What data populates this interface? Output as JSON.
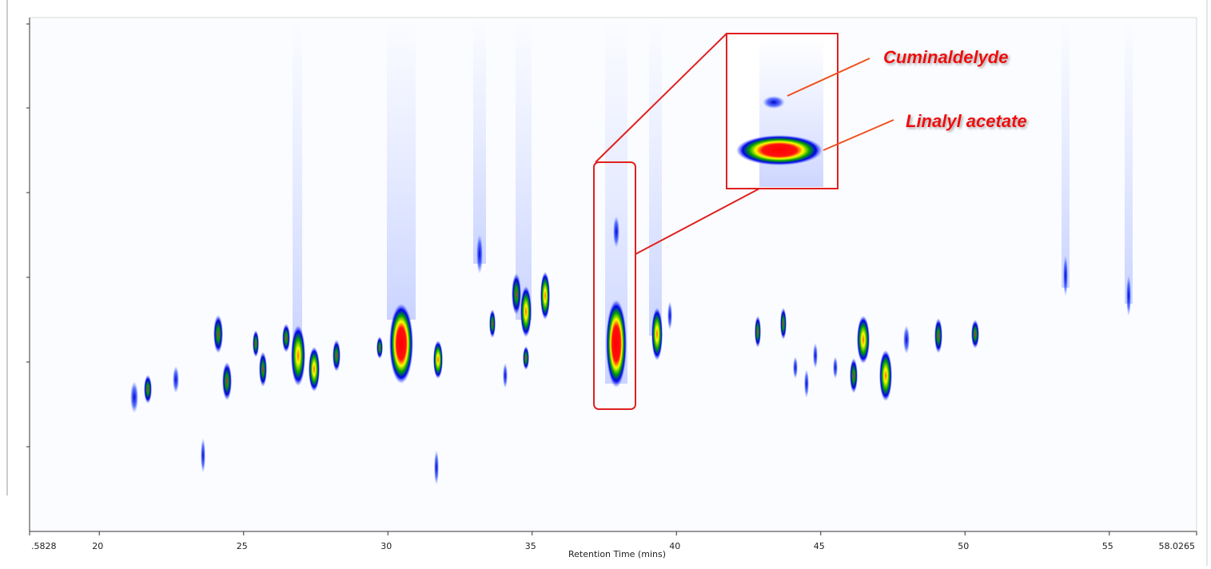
{
  "chart_data": {
    "type": "contour",
    "x_label": "Retention Time (mins)",
    "xlim": [
      17.5828,
      58.0265
    ],
    "xticks": [
      {
        "value": 17.5828,
        "label": ".5828"
      },
      20,
      25,
      30,
      35,
      40,
      45,
      50,
      55,
      58.0265
    ],
    "annotations": [
      "Cuminaldelyde",
      "Linalyl acetate"
    ]
  }
}
